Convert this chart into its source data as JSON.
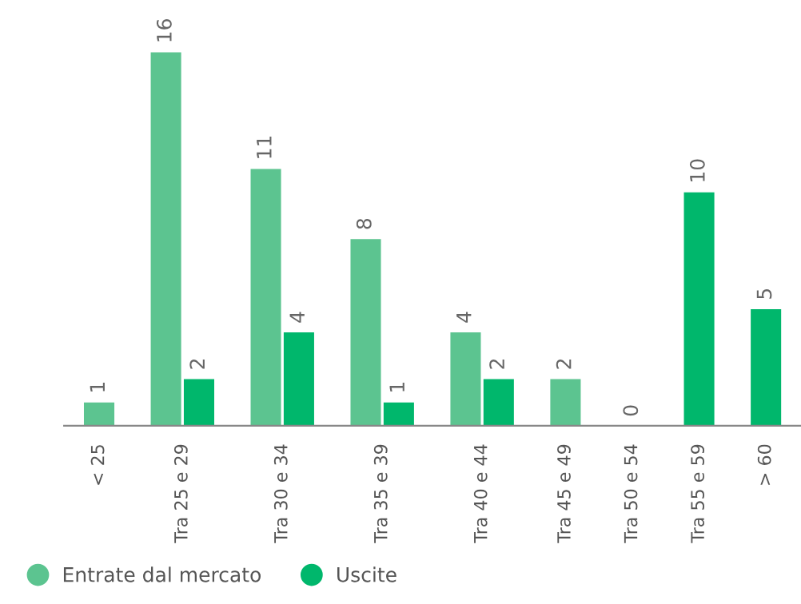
{
  "chart_data": {
    "type": "bar",
    "categories": [
      "< 25",
      "Tra 25 e 29",
      "Tra 30 e 34",
      "Tra 35 e 39",
      "Tra 40 e 44",
      "Tra 45 e 49",
      "Tra 50 e 54",
      "Tra 55 e 59",
      "> 60"
    ],
    "series": [
      {
        "name": "Entrate dal mercato",
        "color": "#5cc490",
        "values": [
          1,
          16,
          11,
          8,
          4,
          2,
          0,
          null,
          null
        ]
      },
      {
        "name": "Uscite",
        "color": "#00b76c",
        "values": [
          null,
          2,
          4,
          1,
          2,
          null,
          null,
          10,
          5
        ]
      }
    ],
    "data_labels": true,
    "legend": "bottom left",
    "grid": false
  }
}
